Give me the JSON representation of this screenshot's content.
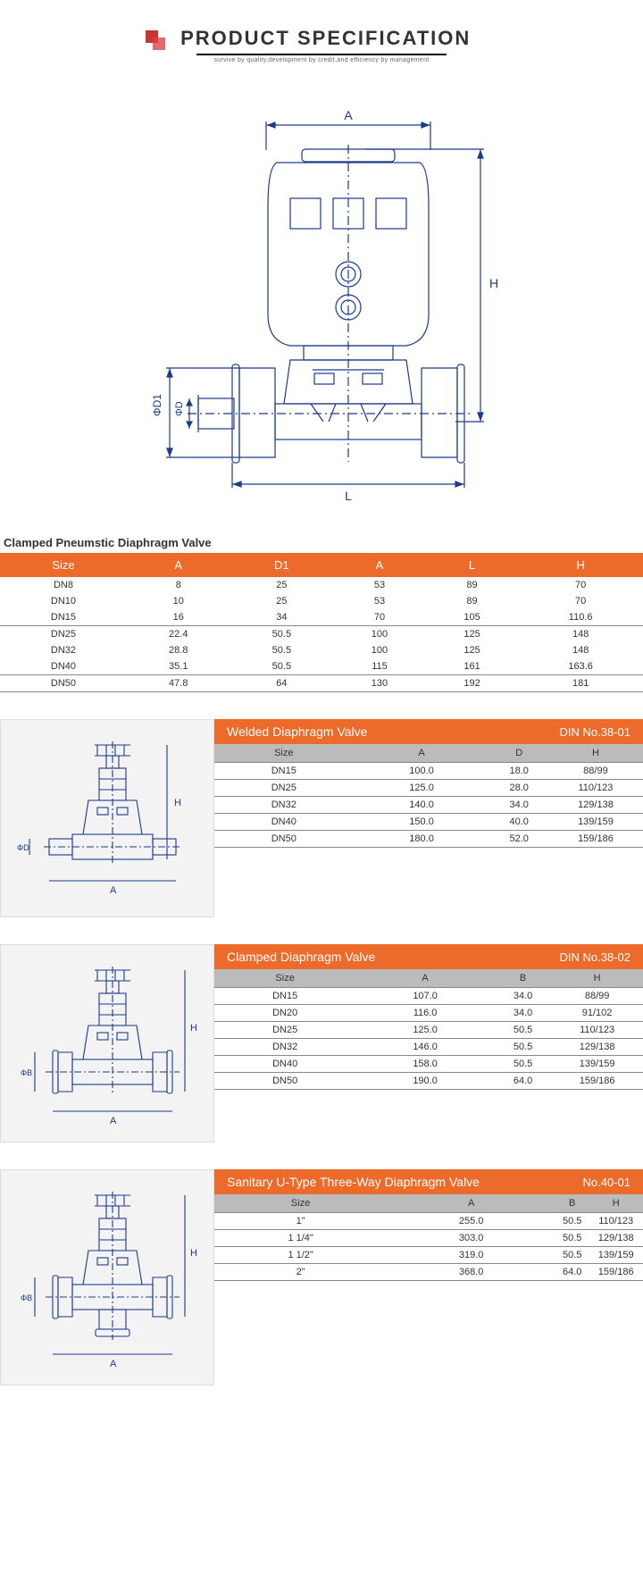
{
  "header": {
    "title": "PRODUCT SPECIFICATION",
    "subtitle": "survive by quality,development by credit,and efficiency by management"
  },
  "main_table": {
    "title": "Clamped Pneumstic Diaphragm Valve",
    "headers": [
      "Size",
      "A",
      "D1",
      "A",
      "L",
      "H"
    ],
    "rows": [
      [
        "DN8",
        "8",
        "25",
        "53",
        "89",
        "70"
      ],
      [
        "DN10",
        "10",
        "25",
        "53",
        "89",
        "70"
      ],
      [
        "DN15",
        "16",
        "34",
        "70",
        "105",
        "110.6"
      ],
      [
        "DN25",
        "22.4",
        "50.5",
        "100",
        "125",
        "148"
      ],
      [
        "DN32",
        "28.8",
        "50.5",
        "100",
        "125",
        "148"
      ],
      [
        "DN40",
        "35.1",
        "50.5",
        "115",
        "161",
        "163.6"
      ],
      [
        "DN50",
        "47.8",
        "64",
        "130",
        "192",
        "181"
      ]
    ],
    "group_breaks": [
      2,
      5
    ]
  },
  "section1": {
    "title": "Welded Diaphragm Valve",
    "ref": "DIN   No.38-01",
    "headers": [
      "Size",
      "A",
      "D",
      "H"
    ],
    "rows": [
      [
        "DN15",
        "100.0",
        "18.0",
        "88/99"
      ],
      [
        "DN25",
        "125.0",
        "28.0",
        "110/123"
      ],
      [
        "DN32",
        "140.0",
        "34.0",
        "129/138"
      ],
      [
        "DN40",
        "150.0",
        "40.0",
        "139/159"
      ],
      [
        "DN50",
        "180.0",
        "52.0",
        "159/186"
      ]
    ]
  },
  "section2": {
    "title": "Clamped Diaphragm Valve",
    "ref": "DIN   No.38-02",
    "headers": [
      "Size",
      "A",
      "B",
      "H"
    ],
    "rows": [
      [
        "DN15",
        "107.0",
        "34.0",
        "88/99"
      ],
      [
        "DN20",
        "116.0",
        "34.0",
        "91/102"
      ],
      [
        "DN25",
        "125.0",
        "50.5",
        "110/123"
      ],
      [
        "DN32",
        "146.0",
        "50.5",
        "129/138"
      ],
      [
        "DN40",
        "158.0",
        "50.5",
        "139/159"
      ],
      [
        "DN50",
        "190.0",
        "64.0",
        "159/186"
      ]
    ]
  },
  "section3": {
    "title": "Sanitary U-Type Three-Way Diaphragm Valve",
    "ref": "No.40-01",
    "headers": [
      "Size",
      "A",
      "B",
      "H"
    ],
    "rows": [
      [
        "1\"",
        "255.0",
        "50.5",
        "110/123"
      ],
      [
        "1 1/4\"",
        "303.0",
        "50.5",
        "129/138"
      ],
      [
        "1 1/2\"",
        "319.0",
        "50.5",
        "139/159"
      ],
      [
        "2\"",
        "368.0",
        "64.0",
        "159/186"
      ]
    ]
  },
  "colors": {
    "accent": "#ec6a2a",
    "subhead": "#bbbbbb",
    "line": "#888888"
  }
}
